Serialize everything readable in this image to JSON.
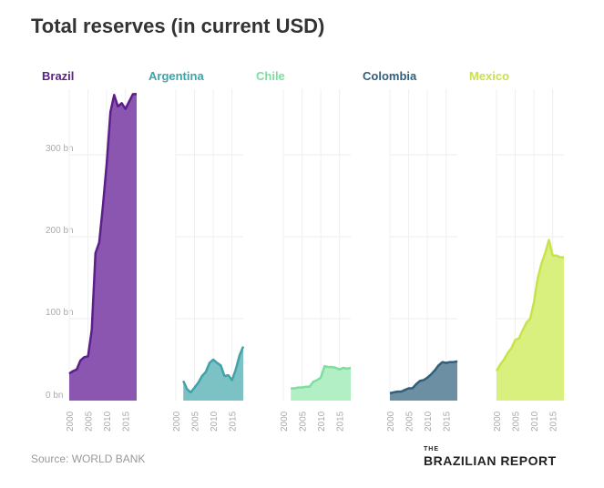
{
  "chart_data": {
    "type": "area",
    "title": "Total reserves (in current USD)",
    "source": "Source: WORLD BANK",
    "brand": {
      "prefix": "THE",
      "name": "BRAZILIAN REPORT"
    },
    "ylabel": "",
    "ylim": [
      0,
      380
    ],
    "yticks": [
      {
        "value": 0,
        "label": "0 bn"
      },
      {
        "value": 100,
        "label": "100 bn"
      },
      {
        "value": 200,
        "label": "200 bn"
      },
      {
        "value": 300,
        "label": "300 bn"
      }
    ],
    "xlim": [
      2000,
      2018
    ],
    "xticks": [
      2000,
      2005,
      2010,
      2015
    ],
    "panels": [
      {
        "name": "Brazil",
        "color": "#5b1e8a",
        "fill": "#8a56b0",
        "x": [
          2000,
          2001,
          2002,
          2003,
          2004,
          2005,
          2006,
          2007,
          2008,
          2009,
          2010,
          2011,
          2012,
          2013,
          2014,
          2015,
          2016,
          2017,
          2018
        ],
        "values": [
          33,
          36,
          38,
          49,
          53,
          54,
          86,
          180,
          193,
          238,
          289,
          352,
          373,
          359,
          363,
          356,
          365,
          374,
          374
        ]
      },
      {
        "name": "Argentina",
        "color": "#3fa3a8",
        "fill": "#7cc2c4",
        "x": [
          2002,
          2003,
          2004,
          2005,
          2006,
          2007,
          2008,
          2009,
          2010,
          2011,
          2012,
          2013,
          2014,
          2015,
          2016,
          2017,
          2018
        ],
        "values": [
          24,
          14,
          10,
          16,
          22,
          30,
          35,
          46,
          50,
          46,
          43,
          30,
          31,
          25,
          38,
          55,
          66
        ]
      },
      {
        "name": "Chile",
        "color": "#7ddea0",
        "fill": "#b2efc4",
        "x": [
          2002,
          2003,
          2004,
          2005,
          2006,
          2007,
          2008,
          2009,
          2010,
          2011,
          2012,
          2013,
          2014,
          2015,
          2016,
          2017,
          2018
        ],
        "values": [
          15,
          15,
          16,
          16,
          17,
          17,
          23,
          25,
          28,
          42,
          41,
          41,
          40,
          38,
          40,
          39,
          40
        ]
      },
      {
        "name": "Colombia",
        "color": "#2f5f7c",
        "fill": "#6d8fa3",
        "x": [
          2000,
          2001,
          2002,
          2003,
          2004,
          2005,
          2006,
          2007,
          2008,
          2009,
          2010,
          2011,
          2012,
          2013,
          2014,
          2015,
          2016,
          2017,
          2018
        ],
        "values": [
          9,
          10,
          11,
          11,
          13,
          15,
          15,
          20,
          24,
          25,
          28,
          32,
          37,
          43,
          47,
          46,
          47,
          47,
          48
        ]
      },
      {
        "name": "Mexico",
        "color": "#c6e34a",
        "fill": "#d9f07e",
        "x": [
          2000,
          2001,
          2002,
          2003,
          2004,
          2005,
          2006,
          2007,
          2008,
          2009,
          2010,
          2011,
          2012,
          2013,
          2014,
          2015,
          2016,
          2017,
          2018
        ],
        "values": [
          36,
          44,
          50,
          58,
          64,
          74,
          76,
          86,
          95,
          100,
          120,
          149,
          167,
          180,
          196,
          177,
          177,
          175,
          175
        ]
      }
    ]
  }
}
